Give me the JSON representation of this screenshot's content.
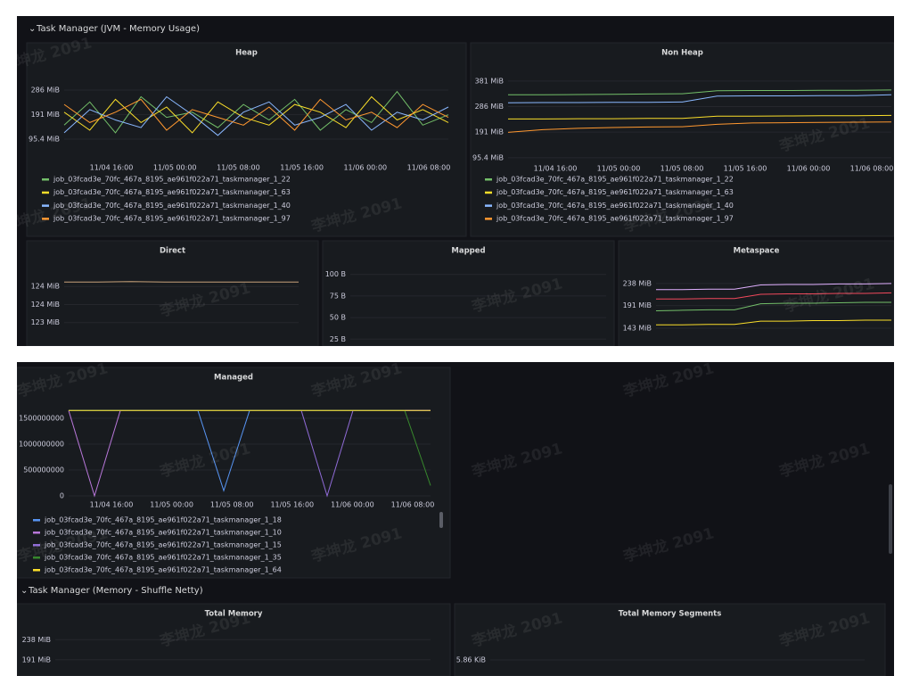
{
  "watermark": "李坤龙 2091",
  "rows": [
    {
      "title": "Task Manager (JVM - Memory Usage)"
    },
    {
      "title": "Task Manager (Memory - Shuffle Netty)"
    }
  ],
  "panels": [
    {
      "title": "Heap",
      "ylim": [
        47,
        324
      ],
      "yticks": [
        {
          "value": 286,
          "label": "286 MiB"
        },
        {
          "value": 191,
          "label": "191 MiB"
        },
        {
          "value": 95.4,
          "label": "95.4 MiB"
        }
      ],
      "xticks": [
        "11/04 16:00",
        "11/05 00:00",
        "11/05 08:00",
        "11/05 16:00",
        "11/06 00:00",
        "11/06 08:00"
      ],
      "series": [
        {
          "name": "job_03fcad3e_70fc_467a_8195_ae961f022a71_taskmanager_1_22",
          "color": "#73bf69",
          "values": [
            150,
            240,
            120,
            260,
            180,
            200,
            140,
            230,
            170,
            250,
            130,
            210,
            160,
            280,
            150,
            190
          ]
        },
        {
          "name": "job_03fcad3e_70fc_467a_8195_ae961f022a71_taskmanager_1_63",
          "color": "#fade2a",
          "values": [
            200,
            130,
            250,
            160,
            220,
            120,
            240,
            180,
            150,
            230,
            200,
            140,
            260,
            170,
            210,
            160
          ]
        },
        {
          "name": "job_03fcad3e_70fc_467a_8195_ae961f022a71_taskmanager_1_40",
          "color": "#8ab8ff",
          "values": [
            120,
            210,
            170,
            140,
            260,
            190,
            110,
            200,
            240,
            150,
            180,
            230,
            130,
            200,
            170,
            220
          ]
        },
        {
          "name": "job_03fcad3e_70fc_467a_8195_ae961f022a71_taskmanager_1_97",
          "color": "#ff9830",
          "values": [
            230,
            160,
            200,
            250,
            130,
            210,
            180,
            150,
            220,
            130,
            250,
            170,
            200,
            140,
            230,
            180
          ]
        }
      ]
    },
    {
      "title": "Non Heap",
      "ylim": [
        85,
        404
      ],
      "yticks": [
        {
          "value": 381,
          "label": "381 MiB"
        },
        {
          "value": 286,
          "label": "286 MiB"
        },
        {
          "value": 191,
          "label": "191 MiB"
        },
        {
          "value": 95.4,
          "label": "95.4 MiB"
        }
      ],
      "xticks": [
        "11/04 16:00",
        "11/05 00:00",
        "11/05 08:00",
        "11/05 16:00",
        "11/06 00:00",
        "11/06 08:00"
      ],
      "series": [
        {
          "name": "job_03fcad3e_70fc_467a_8195_ae961f022a71_taskmanager_1_22",
          "color": "#73bf69",
          "values": [
            330,
            330,
            331,
            332,
            333,
            334,
            345,
            346,
            346,
            347,
            347,
            348
          ]
        },
        {
          "name": "job_03fcad3e_70fc_467a_8195_ae961f022a71_taskmanager_1_63",
          "color": "#fade2a",
          "values": [
            240,
            240,
            241,
            241,
            242,
            242,
            250,
            250,
            251,
            252,
            252,
            253
          ]
        },
        {
          "name": "job_03fcad3e_70fc_467a_8195_ae961f022a71_taskmanager_1_40",
          "color": "#8ab8ff",
          "values": [
            300,
            301,
            301,
            302,
            302,
            303,
            325,
            326,
            326,
            327,
            327,
            330
          ]
        },
        {
          "name": "job_03fcad3e_70fc_467a_8195_ae961f022a71_taskmanager_1_97",
          "color": "#ff9830",
          "values": [
            190,
            200,
            205,
            208,
            210,
            211,
            220,
            225,
            226,
            227,
            228,
            229
          ]
        }
      ]
    },
    {
      "title": "Direct",
      "ylim": [
        122.88,
        124.62
      ],
      "yticks": [
        {
          "value": 124.2,
          "label": "124 MiB"
        },
        {
          "value": 123.8,
          "label": "124 MiB"
        },
        {
          "value": 123.4,
          "label": "123 MiB"
        }
      ],
      "series": [
        {
          "color": "#c8a27a",
          "values": [
            124.3,
            124.3,
            124.31,
            124.3,
            124.3,
            124.3,
            124.3,
            124.3
          ]
        }
      ]
    },
    {
      "title": "Mapped",
      "ylim": [
        17,
        108
      ],
      "yticks": [
        {
          "value": 100,
          "label": "100 B"
        },
        {
          "value": 75,
          "label": "75 B"
        },
        {
          "value": 50,
          "label": "50 B"
        },
        {
          "value": 25,
          "label": "25 B"
        }
      ]
    },
    {
      "title": "Metaspace",
      "ylim": [
        105,
        253
      ],
      "yticks": [
        {
          "value": 238,
          "label": "238 MiB"
        },
        {
          "value": 191,
          "label": "191 MiB"
        },
        {
          "value": 143,
          "label": "143 MiB"
        }
      ],
      "series": [
        {
          "color": "#e0b0ff",
          "values": [
            225,
            225,
            226,
            226,
            235,
            236,
            236,
            237,
            237,
            238
          ]
        },
        {
          "color": "#f2495c",
          "values": [
            205,
            205,
            206,
            206,
            215,
            216,
            216,
            217,
            217,
            218
          ]
        },
        {
          "color": "#73bf69",
          "values": [
            180,
            181,
            182,
            182,
            195,
            196,
            196,
            197,
            198,
            198
          ]
        },
        {
          "color": "#fade2a",
          "values": [
            150,
            150,
            151,
            151,
            158,
            158,
            159,
            159,
            160,
            160
          ]
        }
      ]
    },
    {
      "title": "Managed",
      "ylim": [
        -69000000,
        1741000000
      ],
      "yticks": [
        1500000000,
        1000000000,
        500000000,
        0
      ],
      "xticks": [
        "11/04 16:00",
        "11/05 00:00",
        "11/05 08:00",
        "11/05 16:00",
        "11/06 00:00",
        "11/06 08:00"
      ],
      "series": [
        {
          "name": "job_03fcad3e_70fc_467a_8195_ae961f022a71_taskmanager_1_18",
          "color": "#5794f2",
          "values": [
            1650000000,
            1650000000,
            1650000000,
            1650000000,
            1650000000,
            1650000000,
            100000000,
            1650000000,
            1650000000,
            1650000000,
            1650000000,
            1650000000,
            1650000000,
            1650000000,
            1650000000
          ]
        },
        {
          "name": "job_03fcad3e_70fc_467a_8195_ae961f022a71_taskmanager_1_10",
          "color": "#b877d9",
          "values": [
            1650000000,
            0,
            1650000000,
            1650000000,
            1650000000,
            1650000000,
            1650000000,
            1650000000,
            1650000000,
            1650000000,
            1650000000,
            1650000000,
            1650000000,
            1650000000,
            1650000000
          ]
        },
        {
          "name": "job_03fcad3e_70fc_467a_8195_ae961f022a71_taskmanager_1_15",
          "color": "#8f6bd6",
          "values": [
            1650000000,
            1650000000,
            1650000000,
            1650000000,
            1650000000,
            1650000000,
            1650000000,
            1650000000,
            1650000000,
            1650000000,
            0,
            1650000000,
            1650000000,
            1650000000,
            1650000000
          ]
        },
        {
          "name": "job_03fcad3e_70fc_467a_8195_ae961f022a71_taskmanager_1_35",
          "color": "#37872d",
          "values": [
            1650000000,
            1650000000,
            1650000000,
            1650000000,
            1650000000,
            1650000000,
            1650000000,
            1650000000,
            1650000000,
            1650000000,
            1650000000,
            1650000000,
            1650000000,
            1650000000,
            200000000
          ]
        },
        {
          "name": "job_03fcad3e_70fc_467a_8195_ae961f022a71_taskmanager_1_64",
          "color": "#fade2a",
          "values": [
            1650000000,
            1650000000,
            1650000000,
            1650000000,
            1650000000,
            1650000000,
            1650000000,
            1650000000,
            1650000000,
            1650000000,
            1650000000,
            1650000000,
            1650000000,
            1650000000,
            1650000000
          ]
        }
      ]
    },
    {
      "title": "Total Memory",
      "ylim": [
        153,
        263.6
      ],
      "yticks": [
        {
          "value": 238,
          "label": "238 MiB"
        },
        {
          "value": 191,
          "label": "191 MiB"
        }
      ]
    },
    {
      "title": "Total Memory Segments",
      "ylim": [
        5.52,
        6.52
      ],
      "yticks": [
        {
          "value": 5.86,
          "label": "5.86 KiB"
        }
      ]
    }
  ]
}
